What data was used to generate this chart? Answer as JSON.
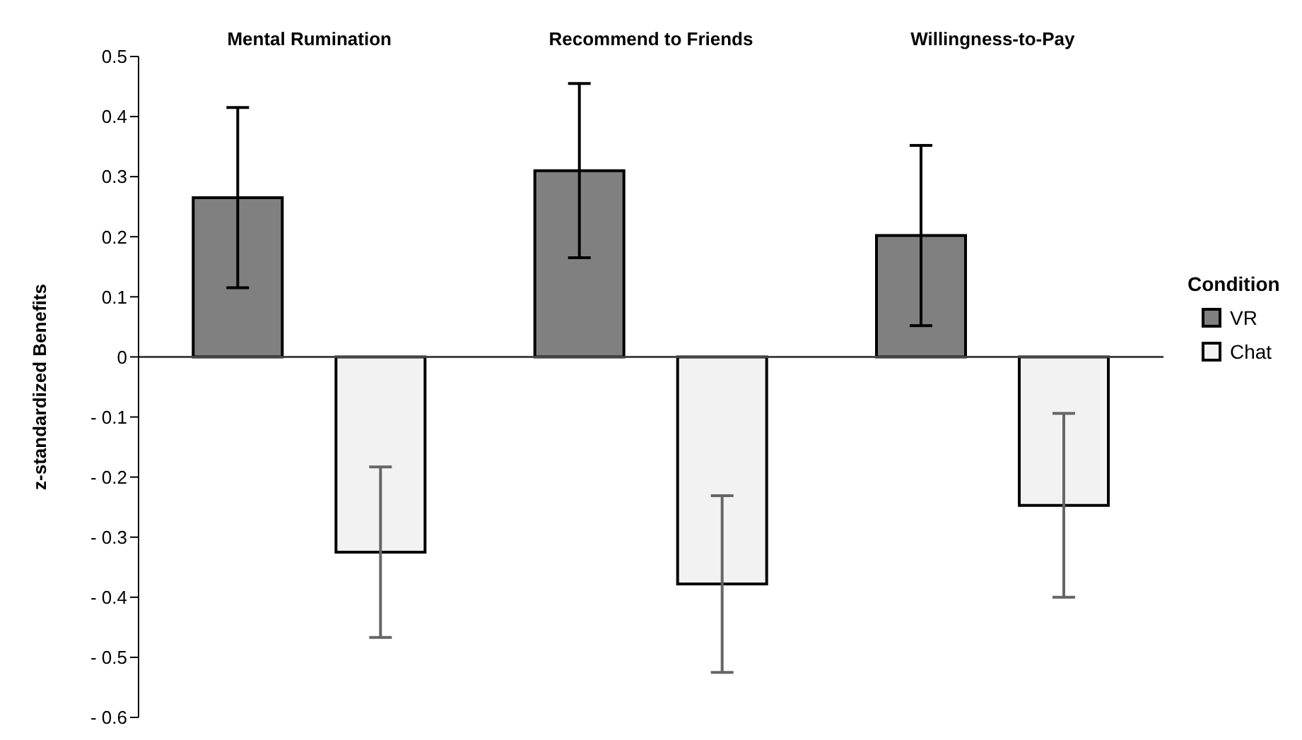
{
  "chart_data": {
    "type": "bar",
    "categories": [
      "Mental Rumination",
      "Recommend to Friends",
      "Willingness-to-Pay"
    ],
    "ylabel": "z-standardized Benefits",
    "legend_title": "Condition",
    "legend": "right",
    "series": [
      {
        "name": "VR",
        "color": "#808080",
        "values": [
          0.265,
          0.31,
          0.202
        ],
        "errors": [
          0.15,
          0.145,
          0.15
        ]
      },
      {
        "name": "Chat",
        "color": "#f2f2f2",
        "values": [
          -0.325,
          -0.378,
          -0.247
        ],
        "errors": [
          0.142,
          0.147,
          0.153
        ]
      }
    ],
    "ylim": [
      -0.6,
      0.5
    ],
    "yticks": [
      {
        "value": -0.6,
        "label": "- 0.6"
      },
      {
        "value": -0.5,
        "label": "- 0.5"
      },
      {
        "value": -0.4,
        "label": "- 0.4"
      },
      {
        "value": -0.3,
        "label": "- 0.3"
      },
      {
        "value": -0.2,
        "label": "- 0.2"
      },
      {
        "value": -0.1,
        "label": "- 0.1"
      },
      0,
      0.1,
      0.2,
      0.3,
      0.4,
      0.5
    ]
  }
}
